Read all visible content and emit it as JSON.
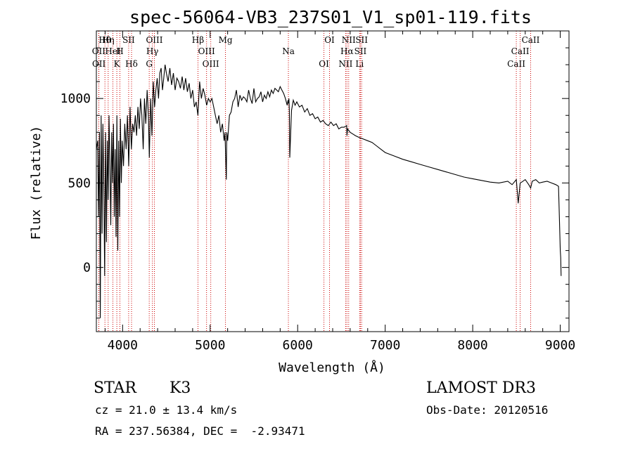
{
  "chart_data": {
    "type": "line",
    "title": "spec-56064-VB3_237S01_V1_sp01-119.fits",
    "xlabel": "Wavelength (Å)",
    "ylabel": "Flux (relative)",
    "xlim": [
      3700,
      9100
    ],
    "ylim": [
      -380,
      1400
    ],
    "x_ticks": [
      4000,
      5000,
      6000,
      7000,
      8000,
      9000
    ],
    "y_ticks": [
      0,
      500,
      1000
    ],
    "series": [
      {
        "name": "spectrum",
        "x": [
          3700,
          3715,
          3725,
          3735,
          3745,
          3755,
          3765,
          3775,
          3785,
          3795,
          3805,
          3815,
          3825,
          3835,
          3845,
          3855,
          3865,
          3875,
          3885,
          3895,
          3905,
          3915,
          3925,
          3935,
          3945,
          3955,
          3965,
          3975,
          3985,
          3995,
          4010,
          4025,
          4040,
          4055,
          4070,
          4085,
          4100,
          4115,
          4130,
          4145,
          4160,
          4175,
          4190,
          4205,
          4220,
          4235,
          4250,
          4265,
          4280,
          4295,
          4305,
          4320,
          4335,
          4350,
          4365,
          4380,
          4395,
          4410,
          4425,
          4440,
          4455,
          4470,
          4485,
          4500,
          4520,
          4540,
          4560,
          4580,
          4600,
          4620,
          4640,
          4660,
          4680,
          4700,
          4720,
          4740,
          4760,
          4780,
          4800,
          4820,
          4840,
          4860,
          4870,
          4880,
          4900,
          4920,
          4940,
          4960,
          4980,
          5000,
          5020,
          5040,
          5060,
          5080,
          5100,
          5120,
          5140,
          5160,
          5170,
          5180,
          5185,
          5190,
          5200,
          5220,
          5240,
          5260,
          5280,
          5300,
          5320,
          5340,
          5360,
          5380,
          5400,
          5420,
          5440,
          5460,
          5480,
          5500,
          5520,
          5540,
          5560,
          5580,
          5600,
          5620,
          5640,
          5660,
          5680,
          5700,
          5720,
          5740,
          5760,
          5780,
          5800,
          5820,
          5840,
          5860,
          5880,
          5890,
          5895,
          5900,
          5905,
          5910,
          5930,
          5950,
          5970,
          5990,
          6020,
          6050,
          6080,
          6110,
          6140,
          6170,
          6200,
          6230,
          6260,
          6290,
          6320,
          6350,
          6380,
          6410,
          6440,
          6470,
          6500,
          6530,
          6560,
          6563,
          6570,
          6600,
          6630,
          6660,
          6700,
          6750,
          6800,
          6850,
          6900,
          6950,
          7000,
          7100,
          7200,
          7300,
          7400,
          7500,
          7600,
          7700,
          7800,
          7900,
          8000,
          8100,
          8200,
          8300,
          8400,
          8450,
          8498,
          8520,
          8542,
          8560,
          8600,
          8640,
          8662,
          8680,
          8720,
          8760,
          8800,
          8850,
          8900,
          8950,
          8980,
          8990,
          9000,
          9005,
          9010
        ],
        "y": [
          700,
          750,
          300,
          800,
          -300,
          900,
          200,
          850,
          500,
          -50,
          800,
          150,
          750,
          400,
          900,
          600,
          250,
          800,
          500,
          850,
          300,
          700,
          180,
          900,
          100,
          750,
          300,
          880,
          500,
          750,
          600,
          850,
          700,
          900,
          600,
          950,
          700,
          850,
          800,
          900,
          780,
          950,
          820,
          1000,
          900,
          700,
          1000,
          850,
          1050,
          900,
          650,
          1000,
          780,
          1100,
          950,
          1050,
          1120,
          1000,
          1150,
          1180,
          1050,
          1120,
          1200,
          1150,
          1100,
          1180,
          1080,
          1150,
          1050,
          1120,
          1100,
          1060,
          1130,
          1050,
          1120,
          1040,
          1090,
          1000,
          1050,
          950,
          980,
          900,
          1000,
          1100,
          1000,
          1060,
          1020,
          960,
          1000,
          980,
          1000,
          950,
          900,
          850,
          900,
          800,
          850,
          750,
          800,
          600,
          520,
          800,
          750,
          900,
          920,
          980,
          1000,
          1050,
          950,
          1020,
          990,
          1010,
          1000,
          980,
          1050,
          1000,
          970,
          1060,
          980,
          1000,
          1010,
          1040,
          980,
          1020,
          1000,
          1040,
          1010,
          1050,
          1030,
          1060,
          1050,
          1040,
          1070,
          1050,
          1030,
          1000,
          960,
          990,
          970,
          1000,
          930,
          650,
          930,
          990,
          960,
          980,
          950,
          960,
          920,
          940,
          900,
          910,
          880,
          890,
          860,
          870,
          850,
          840,
          860,
          840,
          850,
          820,
          830,
          830,
          840,
          780,
          820,
          800,
          790,
          780,
          770,
          760,
          750,
          740,
          720,
          700,
          680,
          660,
          640,
          625,
          610,
          595,
          580,
          565,
          550,
          535,
          525,
          515,
          505,
          500,
          510,
          490,
          520,
          380,
          500,
          505,
          520,
          490,
          470,
          510,
          520,
          500,
          505,
          510,
          500,
          490,
          480,
          300,
          100,
          60,
          -50
        ]
      }
    ],
    "spectral_lines": [
      {
        "label": "Hθ",
        "wavelength": 3798
      },
      {
        "label": "OII",
        "wavelength": 3727
      },
      {
        "label": "OII",
        "wavelength": 3729
      },
      {
        "label": "Hη",
        "wavelength": 3835
      },
      {
        "label": "HeI",
        "wavelength": 3889
      },
      {
        "label": "K",
        "wavelength": 3934
      },
      {
        "label": "SII",
        "wavelength": 4069
      },
      {
        "label": "H",
        "wavelength": 3969
      },
      {
        "label": "Hδ",
        "wavelength": 4102
      },
      {
        "label": "OIII",
        "wavelength": 4363
      },
      {
        "label": "Hγ",
        "wavelength": 4340
      },
      {
        "label": "G",
        "wavelength": 4304
      },
      {
        "label": "Hβ",
        "wavelength": 4861
      },
      {
        "label": "OIII",
        "wavelength": 4959
      },
      {
        "label": "OIII",
        "wavelength": 5007
      },
      {
        "label": "Mg",
        "wavelength": 5175
      },
      {
        "label": "Na",
        "wavelength": 5894
      },
      {
        "label": "OI",
        "wavelength": 6300
      },
      {
        "label": "OI",
        "wavelength": 6364
      },
      {
        "label": "Hα",
        "wavelength": 6563
      },
      {
        "label": "NII",
        "wavelength": 6548
      },
      {
        "label": "NII",
        "wavelength": 6583
      },
      {
        "label": "SII",
        "wavelength": 6717
      },
      {
        "label": "Li",
        "wavelength": 6708
      },
      {
        "label": "SII",
        "wavelength": 6731
      },
      {
        "label": "CaII",
        "wavelength": 8542
      },
      {
        "label": "CaII",
        "wavelength": 8498
      },
      {
        "label": "CaII",
        "wavelength": 8662
      }
    ],
    "line_color": "#000000",
    "marker_color": "#cc0000"
  },
  "info": {
    "class": "STAR",
    "subclass": "K3",
    "survey": "LAMOST DR3",
    "cz": "cz = 21.0 ± 13.4 km/s",
    "obs_date": "Obs-Date: 20120516",
    "radec": "RA = 237.56384, DEC =  -2.93471"
  }
}
